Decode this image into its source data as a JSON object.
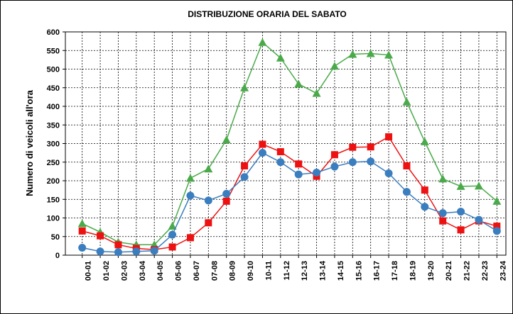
{
  "chart_data": {
    "type": "line",
    "title": "DISTRIBUZIONE ORARIA DEL SABATO",
    "y_label": "Numero di veicoli all'ora",
    "categories": [
      "00-01",
      "01-02",
      "02-03",
      "03-04",
      "04-05",
      "05-06",
      "06-07",
      "07-08",
      "08-09",
      "09-10",
      "10-11",
      "11-12",
      "12-13",
      "13-14",
      "14-15",
      "15-16",
      "16-17",
      "17-18",
      "18-19",
      "19-20",
      "20-21",
      "21-22",
      "22-23",
      "23-24"
    ],
    "series": [
      {
        "color": "#4aaa4a",
        "marker": "triangle",
        "values": [
          85,
          62,
          35,
          28,
          28,
          78,
          207,
          232,
          310,
          450,
          572,
          530,
          460,
          435,
          508,
          540,
          542,
          538,
          412,
          305,
          205,
          185,
          186,
          145
        ]
      },
      {
        "color": "#ee1111",
        "marker": "square",
        "values": [
          65,
          52,
          28,
          18,
          15,
          22,
          47,
          87,
          145,
          240,
          298,
          278,
          245,
          212,
          270,
          290,
          291,
          318,
          240,
          175,
          92,
          68,
          92,
          78
        ]
      },
      {
        "color": "#3a7ebf",
        "marker": "circle",
        "values": [
          20,
          10,
          8,
          10,
          12,
          55,
          160,
          147,
          165,
          210,
          275,
          250,
          217,
          222,
          238,
          250,
          252,
          220,
          170,
          130,
          113,
          117,
          95,
          65
        ]
      }
    ],
    "ylim": [
      0,
      600
    ],
    "yticks": [
      0,
      50,
      100,
      150,
      200,
      250,
      300,
      350,
      400,
      450,
      500,
      550,
      600
    ],
    "grid": true
  }
}
